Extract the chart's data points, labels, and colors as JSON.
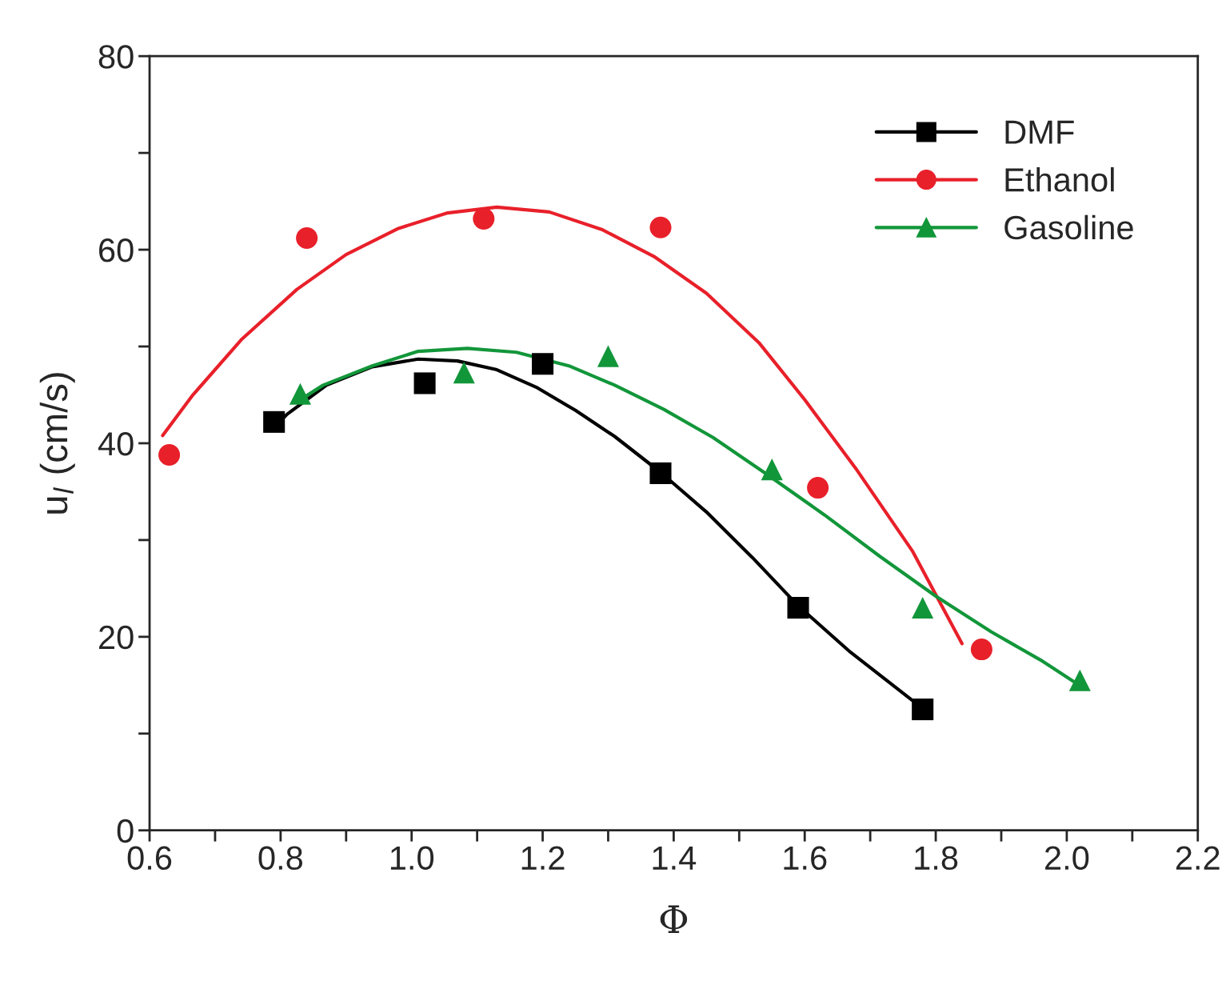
{
  "chart_data": {
    "type": "scatter",
    "xlabel": "Φ",
    "ylabel": "u$_{l}$ (cm/s)",
    "xlim": [
      0.6,
      2.2
    ],
    "ylim": [
      0,
      80
    ],
    "xticks": [
      {
        "value": 0.6,
        "label": "0.6"
      },
      {
        "value": 0.7,
        "label": null
      },
      {
        "value": 0.8,
        "label": "0.8"
      },
      {
        "value": 0.9,
        "label": null
      },
      {
        "value": 1.0,
        "label": "1.0"
      },
      {
        "value": 1.1,
        "label": null
      },
      {
        "value": 1.2,
        "label": "1.2"
      },
      {
        "value": 1.3,
        "label": null
      },
      {
        "value": 1.4,
        "label": "1.4"
      },
      {
        "value": 1.5,
        "label": null
      },
      {
        "value": 1.6,
        "label": "1.6"
      },
      {
        "value": 1.7,
        "label": null
      },
      {
        "value": 1.8,
        "label": "1.8"
      },
      {
        "value": 1.9,
        "label": null
      },
      {
        "value": 2.0,
        "label": "2.0"
      },
      {
        "value": 2.1,
        "label": null
      },
      {
        "value": 2.2,
        "label": "2.2"
      }
    ],
    "yticks": [
      0,
      {
        "value": 10,
        "label": null
      },
      20,
      {
        "value": 30,
        "label": null
      },
      40,
      {
        "value": 50,
        "label": null
      },
      60,
      {
        "value": 70,
        "label": null
      },
      80
    ],
    "grid": false,
    "legend": "top right",
    "series": [
      {
        "name": "DMF",
        "marker": "square",
        "color": "#000000",
        "x": [
          0.79,
          1.02,
          1.2,
          1.38,
          1.59,
          1.78
        ],
        "values": [
          42.2,
          46.2,
          48.2,
          36.9,
          23.0,
          12.5
        ]
      },
      {
        "name": "Ethanol",
        "marker": "circle",
        "color": "#e8202a",
        "x": [
          0.63,
          0.84,
          1.11,
          1.38,
          1.62,
          1.87
        ],
        "values": [
          38.8,
          61.2,
          63.2,
          62.3,
          35.4,
          18.7
        ]
      },
      {
        "name": "Gasoline",
        "marker": "triangle",
        "color": "#12963a",
        "x": [
          0.83,
          1.08,
          1.3,
          1.55,
          1.78,
          2.02
        ],
        "values": [
          45.1,
          47.3,
          49.0,
          37.3,
          23.0,
          15.5
        ]
      },
      {
        "type": "line",
        "color": "#000000",
        "x": [
          0.79,
          0.81,
          0.87,
          0.94,
          1.01,
          1.07,
          1.13,
          1.19,
          1.25,
          1.31,
          1.38,
          1.45,
          1.52,
          1.59,
          1.67,
          1.78
        ],
        "values": [
          41.6,
          43.0,
          46.0,
          47.9,
          48.7,
          48.5,
          47.6,
          45.8,
          43.4,
          40.7,
          37.0,
          32.9,
          28.2,
          23.2,
          18.4,
          12.6
        ]
      },
      {
        "type": "line",
        "color": "#e8202a",
        "x": [
          0.62,
          0.665,
          0.74,
          0.825,
          0.9,
          0.98,
          1.055,
          1.13,
          1.21,
          1.29,
          1.37,
          1.45,
          1.53,
          1.6,
          1.68,
          1.765,
          1.84
        ],
        "values": [
          40.8,
          44.9,
          50.7,
          55.9,
          59.5,
          62.2,
          63.8,
          64.4,
          63.9,
          62.1,
          59.3,
          55.5,
          50.4,
          44.5,
          37.2,
          28.8,
          19.3
        ]
      },
      {
        "type": "line",
        "color": "#12963a",
        "x": [
          0.83,
          0.865,
          0.94,
          1.01,
          1.085,
          1.16,
          1.24,
          1.31,
          1.385,
          1.46,
          1.54,
          1.63,
          1.715,
          1.8,
          1.885,
          1.96,
          2.01
        ],
        "values": [
          44.5,
          46.0,
          48.0,
          49.5,
          49.8,
          49.4,
          48.0,
          46.0,
          43.5,
          40.6,
          36.9,
          32.6,
          28.3,
          24.2,
          20.5,
          17.6,
          15.4
        ]
      }
    ]
  }
}
